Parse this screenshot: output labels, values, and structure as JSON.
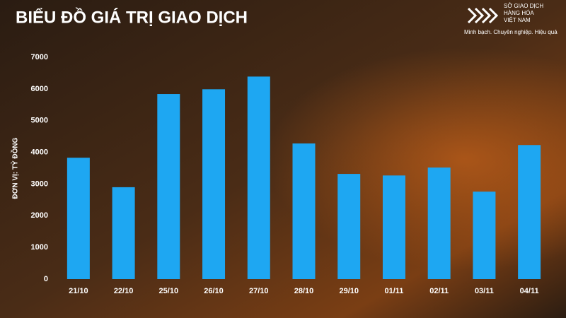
{
  "chart_data": {
    "type": "bar",
    "title": "BIỂU ĐỒ GIÁ TRỊ GIAO DỊCH",
    "logo_lines": [
      "SỞ GIAO DỊCH",
      "HÀNG HÓA",
      "VIỆT NAM"
    ],
    "tagline": "Minh bạch. Chuyên nghiệp. Hiệu quả",
    "y_label": "ĐƠN VỊ: TỶ ĐỒNG",
    "categories": [
      "21/10",
      "22/10",
      "25/10",
      "26/10",
      "27/10",
      "28/10",
      "29/10",
      "01/11",
      "02/11",
      "03/11",
      "04/11"
    ],
    "values": [
      3830,
      2900,
      5840,
      5990,
      6390,
      4280,
      3320,
      3270,
      3520,
      2760,
      4230
    ],
    "color": "#1ea7f2",
    "ylim": [
      0,
      7000
    ],
    "yticks": [
      0,
      1000,
      2000,
      3000,
      4000,
      5000,
      6000,
      7000
    ],
    "grid": false
  }
}
